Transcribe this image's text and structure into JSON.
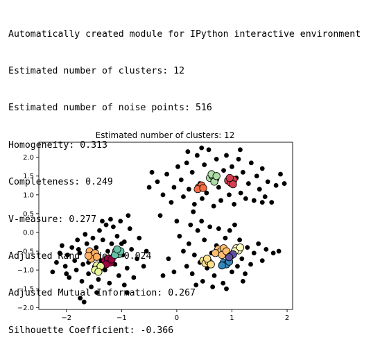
{
  "output_lines": [
    "Automatically created module for IPython interactive environment",
    "Estimated number of clusters: 12",
    "Estimated number of noise points: 516",
    "Homogeneity: 0.313",
    "Completeness: 0.249",
    "V-measure: 0.277",
    "Adjusted Rand Index: 0.024",
    "Adjusted Mutual Information: 0.267",
    "Silhouette Coefficient: -0.366"
  ],
  "chart_data": {
    "type": "scatter",
    "title": "Estimated number of clusters: 12",
    "xlabel": "",
    "ylabel": "",
    "xlim": [
      -2.5,
      2.1
    ],
    "ylim": [
      -2.05,
      2.4
    ],
    "xticks": [
      -2,
      -1,
      0,
      1,
      2
    ],
    "yticks": [
      -2.0,
      -1.5,
      -1.0,
      -0.5,
      0.0,
      0.5,
      1.0,
      1.5,
      2.0
    ],
    "grid": false,
    "noise": {
      "color": "#000000",
      "points": [
        [
          -2.25,
          -1.05
        ],
        [
          -2.18,
          -0.8
        ],
        [
          -2.12,
          -0.55
        ],
        [
          -2.08,
          -0.35
        ],
        [
          -2.02,
          -0.9
        ],
        [
          -1.98,
          -0.6
        ],
        [
          -1.95,
          -1.2
        ],
        [
          -1.9,
          -0.4
        ],
        [
          -1.85,
          -0.75
        ],
        [
          -1.82,
          -1.0
        ],
        [
          -1.8,
          -0.2
        ],
        [
          -1.76,
          -0.55
        ],
        [
          -1.72,
          -1.3
        ],
        [
          -1.7,
          -0.85
        ],
        [
          -1.66,
          -0.05
        ],
        [
          -1.63,
          -0.3
        ],
        [
          -1.6,
          -1.1
        ],
        [
          -1.57,
          -0.6
        ],
        [
          -1.55,
          -1.45
        ],
        [
          -1.52,
          -0.15
        ],
        [
          -1.49,
          -0.9
        ],
        [
          -1.46,
          -0.4
        ],
        [
          -1.42,
          -1.25
        ],
        [
          -1.4,
          0.05
        ],
        [
          -1.37,
          -0.75
        ],
        [
          -1.34,
          -0.2
        ],
        [
          -1.3,
          -1.0
        ],
        [
          -1.28,
          0.2
        ],
        [
          -1.25,
          -0.5
        ],
        [
          -1.22,
          -1.35
        ],
        [
          -1.18,
          -0.3
        ],
        [
          -1.15,
          0.15
        ],
        [
          -1.12,
          -0.85
        ],
        [
          -1.08,
          -0.1
        ],
        [
          -1.05,
          -1.15
        ],
        [
          -1.02,
          0.3
        ],
        [
          -0.98,
          -0.6
        ],
        [
          -0.95,
          -0.25
        ],
        [
          -0.9,
          -0.95
        ],
        [
          -0.85,
          0.1
        ],
        [
          -0.82,
          -0.45
        ],
        [
          -0.78,
          -1.2
        ],
        [
          -0.72,
          -0.7
        ],
        [
          -0.68,
          -0.15
        ],
        [
          -0.6,
          -0.9
        ],
        [
          -0.55,
          -0.5
        ],
        [
          -1.75,
          -1.75
        ],
        [
          -1.68,
          -1.85
        ],
        [
          -1.45,
          -1.6
        ],
        [
          -0.9,
          -1.6
        ],
        [
          -0.88,
          0.45
        ],
        [
          -1.35,
          0.3
        ],
        [
          -1.2,
          0.35
        ],
        [
          -1.6,
          -0.8
        ],
        [
          -1.0,
          -0.3
        ],
        [
          -0.95,
          -1.4
        ],
        [
          -1.78,
          -0.45
        ],
        [
          -2.0,
          -1.1
        ],
        [
          0.05,
          -0.1
        ],
        [
          0.12,
          -0.5
        ],
        [
          0.18,
          -0.9
        ],
        [
          0.22,
          -0.3
        ],
        [
          0.28,
          -1.1
        ],
        [
          0.32,
          -0.6
        ],
        [
          0.38,
          0.05
        ],
        [
          0.42,
          -0.8
        ],
        [
          0.47,
          -1.3
        ],
        [
          0.5,
          -0.2
        ],
        [
          0.55,
          -0.95
        ],
        [
          0.6,
          0.15
        ],
        [
          0.63,
          -0.55
        ],
        [
          0.68,
          -1.15
        ],
        [
          0.72,
          -0.35
        ],
        [
          0.76,
          0.1
        ],
        [
          0.8,
          -0.85
        ],
        [
          0.84,
          -1.35
        ],
        [
          0.88,
          -0.15
        ],
        [
          0.92,
          -0.65
        ],
        [
          0.96,
          0.05
        ],
        [
          1.0,
          -1.05
        ],
        [
          1.05,
          -0.45
        ],
        [
          1.1,
          -0.9
        ],
        [
          1.14,
          -0.2
        ],
        [
          1.18,
          -0.7
        ],
        [
          1.24,
          -1.1
        ],
        [
          1.28,
          -0.4
        ],
        [
          1.34,
          -0.85
        ],
        [
          1.4,
          -0.55
        ],
        [
          1.48,
          -0.3
        ],
        [
          1.55,
          -0.75
        ],
        [
          1.62,
          -0.45
        ],
        [
          1.75,
          -0.55
        ],
        [
          1.85,
          -0.5
        ],
        [
          -0.15,
          -0.7
        ],
        [
          -0.05,
          -1.05
        ],
        [
          0.25,
          0.2
        ],
        [
          0.45,
          0.3
        ],
        [
          0.65,
          -1.45
        ],
        [
          0.9,
          -1.5
        ],
        [
          1.2,
          -1.3
        ],
        [
          1.05,
          0.2
        ],
        [
          0.35,
          -1.4
        ],
        [
          -0.25,
          -1.15
        ],
        [
          -0.45,
          1.6
        ],
        [
          -0.35,
          1.35
        ],
        [
          -0.25,
          1.0
        ],
        [
          -0.18,
          1.55
        ],
        [
          -0.1,
          0.8
        ],
        [
          -0.05,
          1.2
        ],
        [
          0.02,
          1.75
        ],
        [
          0.08,
          1.4
        ],
        [
          0.12,
          0.95
        ],
        [
          0.18,
          1.85
        ],
        [
          0.22,
          1.15
        ],
        [
          0.28,
          1.6
        ],
        [
          0.32,
          0.75
        ],
        [
          0.37,
          2.05
        ],
        [
          0.42,
          1.3
        ],
        [
          0.46,
          0.9
        ],
        [
          0.5,
          1.8
        ],
        [
          0.54,
          1.05
        ],
        [
          0.58,
          2.2
        ],
        [
          0.63,
          1.45
        ],
        [
          0.67,
          0.7
        ],
        [
          0.72,
          1.95
        ],
        [
          0.76,
          1.2
        ],
        [
          0.8,
          0.85
        ],
        [
          0.85,
          1.65
        ],
        [
          0.9,
          2.05
        ],
        [
          0.95,
          1.0
        ],
        [
          1.0,
          1.75
        ],
        [
          1.04,
          0.75
        ],
        [
          1.08,
          1.45
        ],
        [
          1.12,
          1.95
        ],
        [
          1.16,
          1.05
        ],
        [
          1.2,
          1.6
        ],
        [
          1.25,
          0.9
        ],
        [
          1.3,
          1.3
        ],
        [
          1.35,
          1.85
        ],
        [
          1.4,
          0.85
        ],
        [
          1.45,
          1.5
        ],
        [
          1.5,
          1.15
        ],
        [
          1.55,
          1.7
        ],
        [
          1.6,
          0.95
        ],
        [
          1.65,
          1.35
        ],
        [
          1.72,
          0.8
        ],
        [
          1.8,
          1.25
        ],
        [
          1.88,
          1.55
        ],
        [
          -0.3,
          0.45
        ],
        [
          0.0,
          0.3
        ],
        [
          0.2,
          2.15
        ],
        [
          0.45,
          2.25
        ],
        [
          0.3,
          0.55
        ],
        [
          1.15,
          2.2
        ],
        [
          1.55,
          0.8
        ],
        [
          -0.5,
          1.2
        ],
        [
          1.95,
          1.3
        ]
      ]
    },
    "clusters": [
      {
        "color": "#9e0142",
        "points": [
          [
            -1.3,
            -0.75
          ],
          [
            -1.25,
            -0.7
          ],
          [
            -1.2,
            -0.8
          ],
          [
            -1.28,
            -0.85
          ],
          [
            -1.18,
            -0.72
          ]
        ]
      },
      {
        "color": "#d53e4f",
        "points": [
          [
            0.93,
            1.38
          ],
          [
            0.98,
            1.32
          ],
          [
            1.03,
            1.4
          ],
          [
            0.96,
            1.45
          ],
          [
            1.02,
            1.28
          ]
        ]
      },
      {
        "color": "#f46d43",
        "points": [
          [
            0.4,
            1.2
          ],
          [
            0.45,
            1.25
          ],
          [
            0.38,
            1.15
          ],
          [
            0.48,
            1.18
          ]
        ]
      },
      {
        "color": "#fdae61",
        "points": [
          [
            -1.58,
            -0.5
          ],
          [
            -1.52,
            -0.6
          ],
          [
            -1.55,
            -0.7
          ],
          [
            -1.48,
            -0.55
          ],
          [
            -1.6,
            -0.62
          ],
          [
            -1.45,
            -0.65
          ]
        ]
      },
      {
        "color": "#fdbf6f",
        "points": [
          [
            0.75,
            -0.45
          ],
          [
            0.8,
            -0.5
          ],
          [
            0.85,
            -0.42
          ],
          [
            0.7,
            -0.55
          ],
          [
            0.82,
            -0.6
          ],
          [
            0.9,
            -0.5
          ]
        ]
      },
      {
        "color": "#fee08b",
        "points": [
          [
            0.48,
            -0.75
          ],
          [
            0.52,
            -0.82
          ],
          [
            0.58,
            -0.78
          ],
          [
            0.55,
            -0.7
          ],
          [
            0.62,
            -0.85
          ]
        ]
      },
      {
        "color": "#ffffbf",
        "points": [
          [
            1.08,
            -0.42
          ],
          [
            1.12,
            -0.48
          ],
          [
            1.05,
            -0.5
          ],
          [
            1.15,
            -0.4
          ]
        ]
      },
      {
        "color": "#e6f598",
        "points": [
          [
            -1.45,
            -0.88
          ],
          [
            -1.4,
            -0.95
          ],
          [
            -1.48,
            -1.0
          ],
          [
            -1.38,
            -0.9
          ],
          [
            -1.42,
            -1.05
          ]
        ]
      },
      {
        "color": "#abdda4",
        "points": [
          [
            0.6,
            1.45
          ],
          [
            0.65,
            1.5
          ],
          [
            0.7,
            1.42
          ],
          [
            0.63,
            1.55
          ],
          [
            0.68,
            1.35
          ],
          [
            0.72,
            1.5
          ]
        ]
      },
      {
        "color": "#66c2a5",
        "points": [
          [
            -1.1,
            -0.5
          ],
          [
            -1.05,
            -0.58
          ],
          [
            -1.12,
            -0.6
          ],
          [
            -1.02,
            -0.5
          ],
          [
            -1.08,
            -0.45
          ]
        ]
      },
      {
        "color": "#3288bd",
        "points": [
          [
            0.85,
            -0.8
          ],
          [
            0.9,
            -0.85
          ],
          [
            0.82,
            -0.88
          ],
          [
            0.95,
            -0.78
          ]
        ]
      },
      {
        "color": "#5e4fa2",
        "points": [
          [
            0.98,
            -0.62
          ],
          [
            1.02,
            -0.58
          ],
          [
            0.95,
            -0.66
          ]
        ]
      }
    ]
  }
}
